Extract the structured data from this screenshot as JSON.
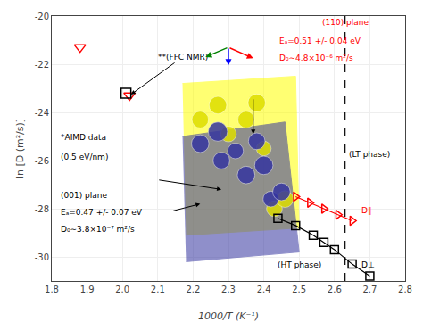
{
  "chart_data": {
    "type": "scatter",
    "xlabel": "1000/T (K⁻¹)",
    "ylabel": "ln [D (m²/s)]",
    "xlim": [
      1.8,
      2.8
    ],
    "ylim": [
      -31,
      -20
    ],
    "xticks": [
      1.8,
      1.9,
      {
        "value": 2,
        "label": "2.0"
      },
      2.1,
      2.2,
      2.3,
      2.4,
      2.5,
      2.6,
      2.7,
      2.8
    ],
    "yticks": [
      -30,
      -28,
      -26,
      -24,
      -22,
      -20
    ],
    "grid": true,
    "series": [
      {
        "type": "area",
        "color": "yellow",
        "x": [
          2.17,
          2.49,
          2.5,
          2.18
        ],
        "values": [
          -22.8,
          -22.5,
          -28.8,
          -29.1
        ]
      },
      {
        "type": "area",
        "color": "#3535a0",
        "x": [
          2.17,
          2.46,
          2.5,
          2.18
        ],
        "values": [
          -25.0,
          -24.4,
          -29.8,
          -30.2
        ]
      },
      {
        "type": "scatter",
        "marker": "triangle-down-open",
        "color": "#ff0000",
        "x": [
          1.88,
          2.02
        ],
        "values": [
          -21.3,
          -23.3
        ]
      },
      {
        "type": "scatter",
        "marker": "square-open",
        "color": "black",
        "x": [
          2.01
        ],
        "values": [
          -23.2
        ]
      },
      {
        "type": "scatter",
        "marker": "circle",
        "color": "#dddd00",
        "x": [
          2.22,
          2.27,
          2.3,
          2.35,
          2.38,
          2.4,
          2.43,
          2.46
        ],
        "values": [
          -24.3,
          -23.7,
          -24.9,
          -24.3,
          -23.6,
          -25.5,
          -28.0,
          -27.6
        ],
        "sizes": [
          180,
          200,
          160,
          180,
          200,
          140,
          160,
          180
        ]
      },
      {
        "type": "scatter",
        "marker": "circle",
        "color": "#3535a0",
        "x": [
          2.22,
          2.27,
          2.28,
          2.32,
          2.35,
          2.38,
          2.4,
          2.42,
          2.45
        ],
        "values": [
          -25.3,
          -24.8,
          -26.0,
          -25.6,
          -26.6,
          -25.2,
          -26.2,
          -27.6,
          -27.3
        ],
        "sizes": [
          200,
          240,
          180,
          160,
          200,
          180,
          220,
          160,
          200
        ]
      },
      {
        "type": "line",
        "marker": "square-open",
        "color": "black",
        "x": [
          2.44,
          2.49,
          2.54,
          2.57,
          2.6,
          2.65,
          2.7
        ],
        "values": [
          -28.4,
          -28.7,
          -29.1,
          -29.4,
          -29.7,
          -30.3,
          -30.8
        ]
      },
      {
        "type": "line",
        "marker": "triangle-right-open",
        "color": "#ff0000",
        "x": [
          2.49,
          2.53,
          2.57,
          2.61,
          2.65
        ],
        "values": [
          -27.5,
          -27.75,
          -28.0,
          -28.25,
          -28.5
        ]
      },
      {
        "type": "vline",
        "line_style": "dashed",
        "color": "black",
        "x": [
          2.63
        ]
      }
    ],
    "annotations": [
      {
        "text": "**(FFC NMR)",
        "color": "black"
      },
      {
        "text": "*AIMD data",
        "color": "black"
      },
      {
        "text": "(0.5 eV/nm)",
        "color": "black"
      },
      {
        "text": "(001) plane",
        "color": "black"
      },
      {
        "text": "Eₐ=0.47 +/- 0.07 eV",
        "color": "black"
      },
      {
        "text": "D₀∼3.8×10⁻⁷ m²/s",
        "color": "black"
      },
      {
        "text": "(110) plane",
        "color": "#ff0000"
      },
      {
        "text": "Eₐ=0.51 +/- 0.04 eV",
        "color": "#ff0000"
      },
      {
        "text": "D₀∼4.8×10⁻⁶ m²/s",
        "color": "#ff0000"
      },
      {
        "text": "(LT phase)",
        "color": "black"
      },
      {
        "text": "D∥",
        "color": "#ff0000"
      },
      {
        "text": "(HT phase)",
        "color": "black"
      },
      {
        "text": "D⊥",
        "color": "black"
      }
    ],
    "arrows": [
      {
        "color": "black"
      },
      {
        "color": "black"
      },
      {
        "color": "black"
      },
      {
        "color": "blue"
      },
      {
        "color": "red"
      },
      {
        "color": "green"
      }
    ]
  }
}
